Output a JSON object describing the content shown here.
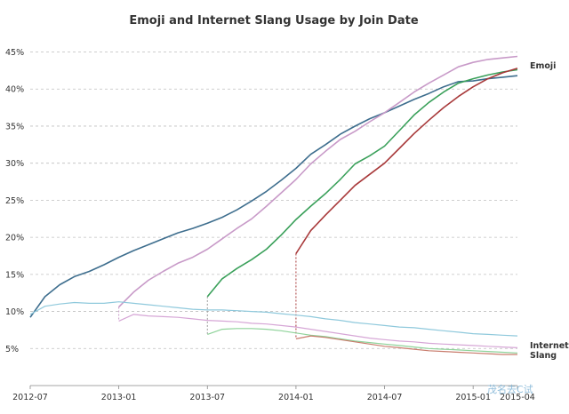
{
  "chart_data": {
    "type": "line",
    "title": "Emoji and Internet Slang Usage by Join Date",
    "xlabel": "",
    "ylabel": "",
    "y_tick_labels": [
      "5%",
      "10%",
      "15%",
      "20%",
      "25%",
      "30%",
      "35%",
      "40%",
      "45%"
    ],
    "y_ticks": [
      5,
      10,
      15,
      20,
      25,
      30,
      35,
      40,
      45
    ],
    "ylim": [
      0,
      46.5
    ],
    "x_tick_labels": [
      "2012-07",
      "2013-01",
      "2013-07",
      "2014-01",
      "2014-07",
      "2015-01",
      "2015-04"
    ],
    "x_ticks": [
      0,
      6,
      12,
      18,
      24,
      30,
      33
    ],
    "xlim": [
      0,
      33
    ],
    "grid": true,
    "series_labels": {
      "emoji": "Emoji",
      "slang_line1": "Internet",
      "slang_line2": "Slang"
    },
    "colors": {
      "cohort_2012_07": "#3e6e8e",
      "cohort_2013_01": "#c89ac8",
      "cohort_2013_07": "#3aa05a",
      "cohort_2014_01": "#a8393a",
      "slang_2012_07": "#8fc9dc",
      "slang_2013_01": "#d6a6d6",
      "slang_2013_07": "#8fd39a",
      "slang_2014_01": "#c97d6e"
    },
    "series": [
      {
        "group": "Emoji",
        "key": "cohort_2012_07",
        "x": [
          0,
          1,
          2,
          3,
          4,
          5,
          6,
          7,
          8,
          9,
          10,
          11,
          12,
          13,
          14,
          15,
          16,
          17,
          18,
          19,
          20,
          21,
          22,
          23,
          24,
          25,
          26,
          27,
          28,
          29,
          30,
          31,
          32,
          33
        ],
        "y": [
          9.2,
          12.0,
          13.6,
          14.7,
          15.4,
          16.3,
          17.3,
          18.2,
          19.0,
          19.8,
          20.6,
          21.2,
          21.9,
          22.7,
          23.7,
          24.9,
          26.2,
          27.7,
          29.3,
          31.2,
          32.5,
          33.9,
          35.0,
          36.0,
          36.8,
          37.7,
          38.6,
          39.4,
          40.3,
          41.0,
          41.1,
          41.4,
          41.6,
          41.8
        ]
      },
      {
        "group": "Emoji",
        "key": "cohort_2013_01",
        "x": [
          6,
          7,
          8,
          9,
          10,
          11,
          12,
          13,
          14,
          15,
          16,
          17,
          18,
          19,
          20,
          21,
          22,
          23,
          24,
          25,
          26,
          27,
          28,
          29,
          30,
          31,
          32,
          33
        ],
        "y": [
          10.6,
          12.6,
          14.2,
          15.4,
          16.5,
          17.3,
          18.4,
          19.8,
          21.2,
          22.5,
          24.2,
          26.0,
          27.8,
          29.9,
          31.6,
          33.2,
          34.3,
          35.6,
          36.8,
          38.2,
          39.6,
          40.8,
          41.9,
          43.0,
          43.6,
          44.0,
          44.2,
          44.4
        ]
      },
      {
        "group": "Emoji",
        "key": "cohort_2013_07",
        "x": [
          12,
          13,
          14,
          15,
          16,
          17,
          18,
          19,
          20,
          21,
          22,
          23,
          24,
          25,
          26,
          27,
          28,
          29,
          30,
          31,
          32,
          33
        ],
        "y": [
          12.0,
          14.4,
          15.8,
          17.0,
          18.4,
          20.3,
          22.4,
          24.2,
          25.9,
          27.8,
          29.9,
          31.0,
          32.3,
          34.4,
          36.5,
          38.2,
          39.6,
          40.8,
          41.4,
          41.9,
          42.3,
          42.6
        ]
      },
      {
        "group": "Emoji",
        "key": "cohort_2014_01",
        "x": [
          18,
          19,
          20,
          21,
          22,
          23,
          24,
          25,
          26,
          27,
          28,
          29,
          30,
          31,
          32,
          33
        ],
        "y": [
          17.8,
          20.9,
          23.0,
          25.0,
          27.0,
          28.5,
          30.0,
          32.0,
          34.0,
          35.8,
          37.5,
          39.0,
          40.3,
          41.4,
          42.2,
          42.8
        ]
      },
      {
        "group": "Internet Slang",
        "key": "slang_2012_07",
        "x": [
          0,
          1,
          2,
          3,
          4,
          5,
          6,
          7,
          8,
          9,
          10,
          11,
          12,
          13,
          14,
          15,
          16,
          17,
          18,
          19,
          20,
          21,
          22,
          23,
          24,
          25,
          26,
          27,
          28,
          29,
          30,
          31,
          32,
          33
        ],
        "y": [
          9.6,
          10.7,
          11.0,
          11.2,
          11.1,
          11.1,
          11.3,
          11.1,
          10.9,
          10.7,
          10.5,
          10.3,
          10.2,
          10.2,
          10.1,
          10.0,
          9.9,
          9.7,
          9.5,
          9.3,
          9.0,
          8.8,
          8.5,
          8.3,
          8.1,
          7.9,
          7.8,
          7.6,
          7.4,
          7.2,
          7.0,
          6.9,
          6.8,
          6.7
        ]
      },
      {
        "group": "Internet Slang",
        "key": "slang_2013_01",
        "x": [
          6,
          7,
          8,
          9,
          10,
          11,
          12,
          13,
          14,
          15,
          16,
          17,
          18,
          19,
          20,
          21,
          22,
          23,
          24,
          25,
          26,
          27,
          28,
          29,
          30,
          31,
          32,
          33
        ],
        "y": [
          8.7,
          9.6,
          9.4,
          9.3,
          9.2,
          9.0,
          8.8,
          8.7,
          8.6,
          8.4,
          8.3,
          8.1,
          7.9,
          7.6,
          7.3,
          7.0,
          6.7,
          6.4,
          6.2,
          6.0,
          5.9,
          5.7,
          5.6,
          5.5,
          5.4,
          5.3,
          5.2,
          5.1
        ]
      },
      {
        "group": "Internet Slang",
        "key": "slang_2013_07",
        "x": [
          12,
          13,
          14,
          15,
          16,
          17,
          18,
          19,
          20,
          21,
          22,
          23,
          24,
          25,
          26,
          27,
          28,
          29,
          30,
          31,
          32,
          33
        ],
        "y": [
          6.9,
          7.6,
          7.7,
          7.7,
          7.6,
          7.4,
          7.1,
          6.8,
          6.6,
          6.3,
          6.0,
          5.8,
          5.6,
          5.4,
          5.2,
          5.0,
          4.9,
          4.8,
          4.7,
          4.6,
          4.5,
          4.4
        ]
      },
      {
        "group": "Internet Slang",
        "key": "slang_2014_01",
        "x": [
          18,
          19,
          20,
          21,
          22,
          23,
          24,
          25,
          26,
          27,
          28,
          29,
          30,
          31,
          32,
          33
        ],
        "y": [
          6.3,
          6.7,
          6.5,
          6.2,
          5.9,
          5.6,
          5.3,
          5.1,
          4.9,
          4.7,
          4.6,
          4.5,
          4.4,
          4.3,
          4.2,
          4.2
        ]
      }
    ],
    "cohort_markers": [
      {
        "x": 6,
        "y_top": 10.6,
        "y_bottom": 8.7,
        "color": "#c89ac8"
      },
      {
        "x": 12,
        "y_top": 12.0,
        "y_bottom": 6.9,
        "color": "#9a9a9a"
      },
      {
        "x": 18,
        "y_top": 17.8,
        "y_bottom": 6.3,
        "color": "#a8393a"
      }
    ]
  },
  "watermark": "茂名去C试"
}
